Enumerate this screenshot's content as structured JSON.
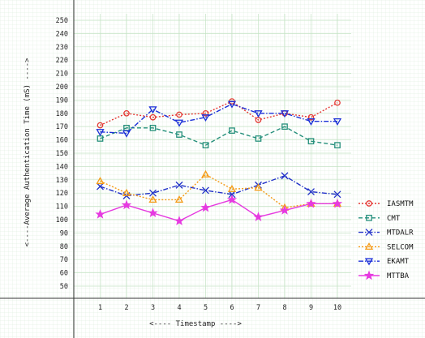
{
  "chart_data": {
    "type": "line",
    "xlabel": "<---- Timestamp ---->",
    "ylabel": "<----Average Authentication Time (mS) ---->",
    "x": [
      1,
      2,
      3,
      4,
      5,
      6,
      7,
      8,
      9,
      10
    ],
    "xlim": [
      0,
      10.6
    ],
    "ylim": [
      50,
      250
    ],
    "y_ticks": [
      50,
      60,
      70,
      80,
      90,
      100,
      110,
      120,
      130,
      140,
      150,
      160,
      170,
      180,
      190,
      200,
      210,
      220,
      230,
      240,
      250
    ],
    "grid": true,
    "legend_position": "right",
    "series": [
      {
        "name": "IASMTM",
        "color": "#e53935",
        "dash": "dotted",
        "marker": "circle",
        "values": [
          171,
          180,
          177,
          179,
          180,
          189,
          175,
          180,
          177,
          188
        ]
      },
      {
        "name": "CMT",
        "color": "#26907c",
        "dash": "dashed",
        "marker": "square",
        "values": [
          161,
          169,
          169,
          164,
          156,
          167,
          161,
          170,
          159,
          156
        ]
      },
      {
        "name": "MTDALR",
        "color": "#2232c8",
        "dash": "dashdot",
        "marker": "x",
        "values": [
          125,
          118,
          120,
          126,
          122,
          119,
          126,
          133,
          121,
          119
        ]
      },
      {
        "name": "SELCOM",
        "color": "#f59a16",
        "dash": "dotted",
        "marker": "triangle-up",
        "values": [
          129,
          120,
          115,
          115,
          134,
          123,
          124,
          109,
          112,
          112
        ]
      },
      {
        "name": "EKAMT",
        "color": "#1b2fd8",
        "dash": "dashdot",
        "marker": "triangle-down",
        "values": [
          166,
          165,
          183,
          173,
          177,
          187,
          180,
          180,
          174,
          174
        ]
      },
      {
        "name": "MTTBA",
        "color": "#e63ae0",
        "dash": "solid",
        "marker": "star",
        "values": [
          104,
          111,
          105,
          99,
          109,
          115,
          102,
          107,
          112,
          112
        ]
      }
    ]
  }
}
